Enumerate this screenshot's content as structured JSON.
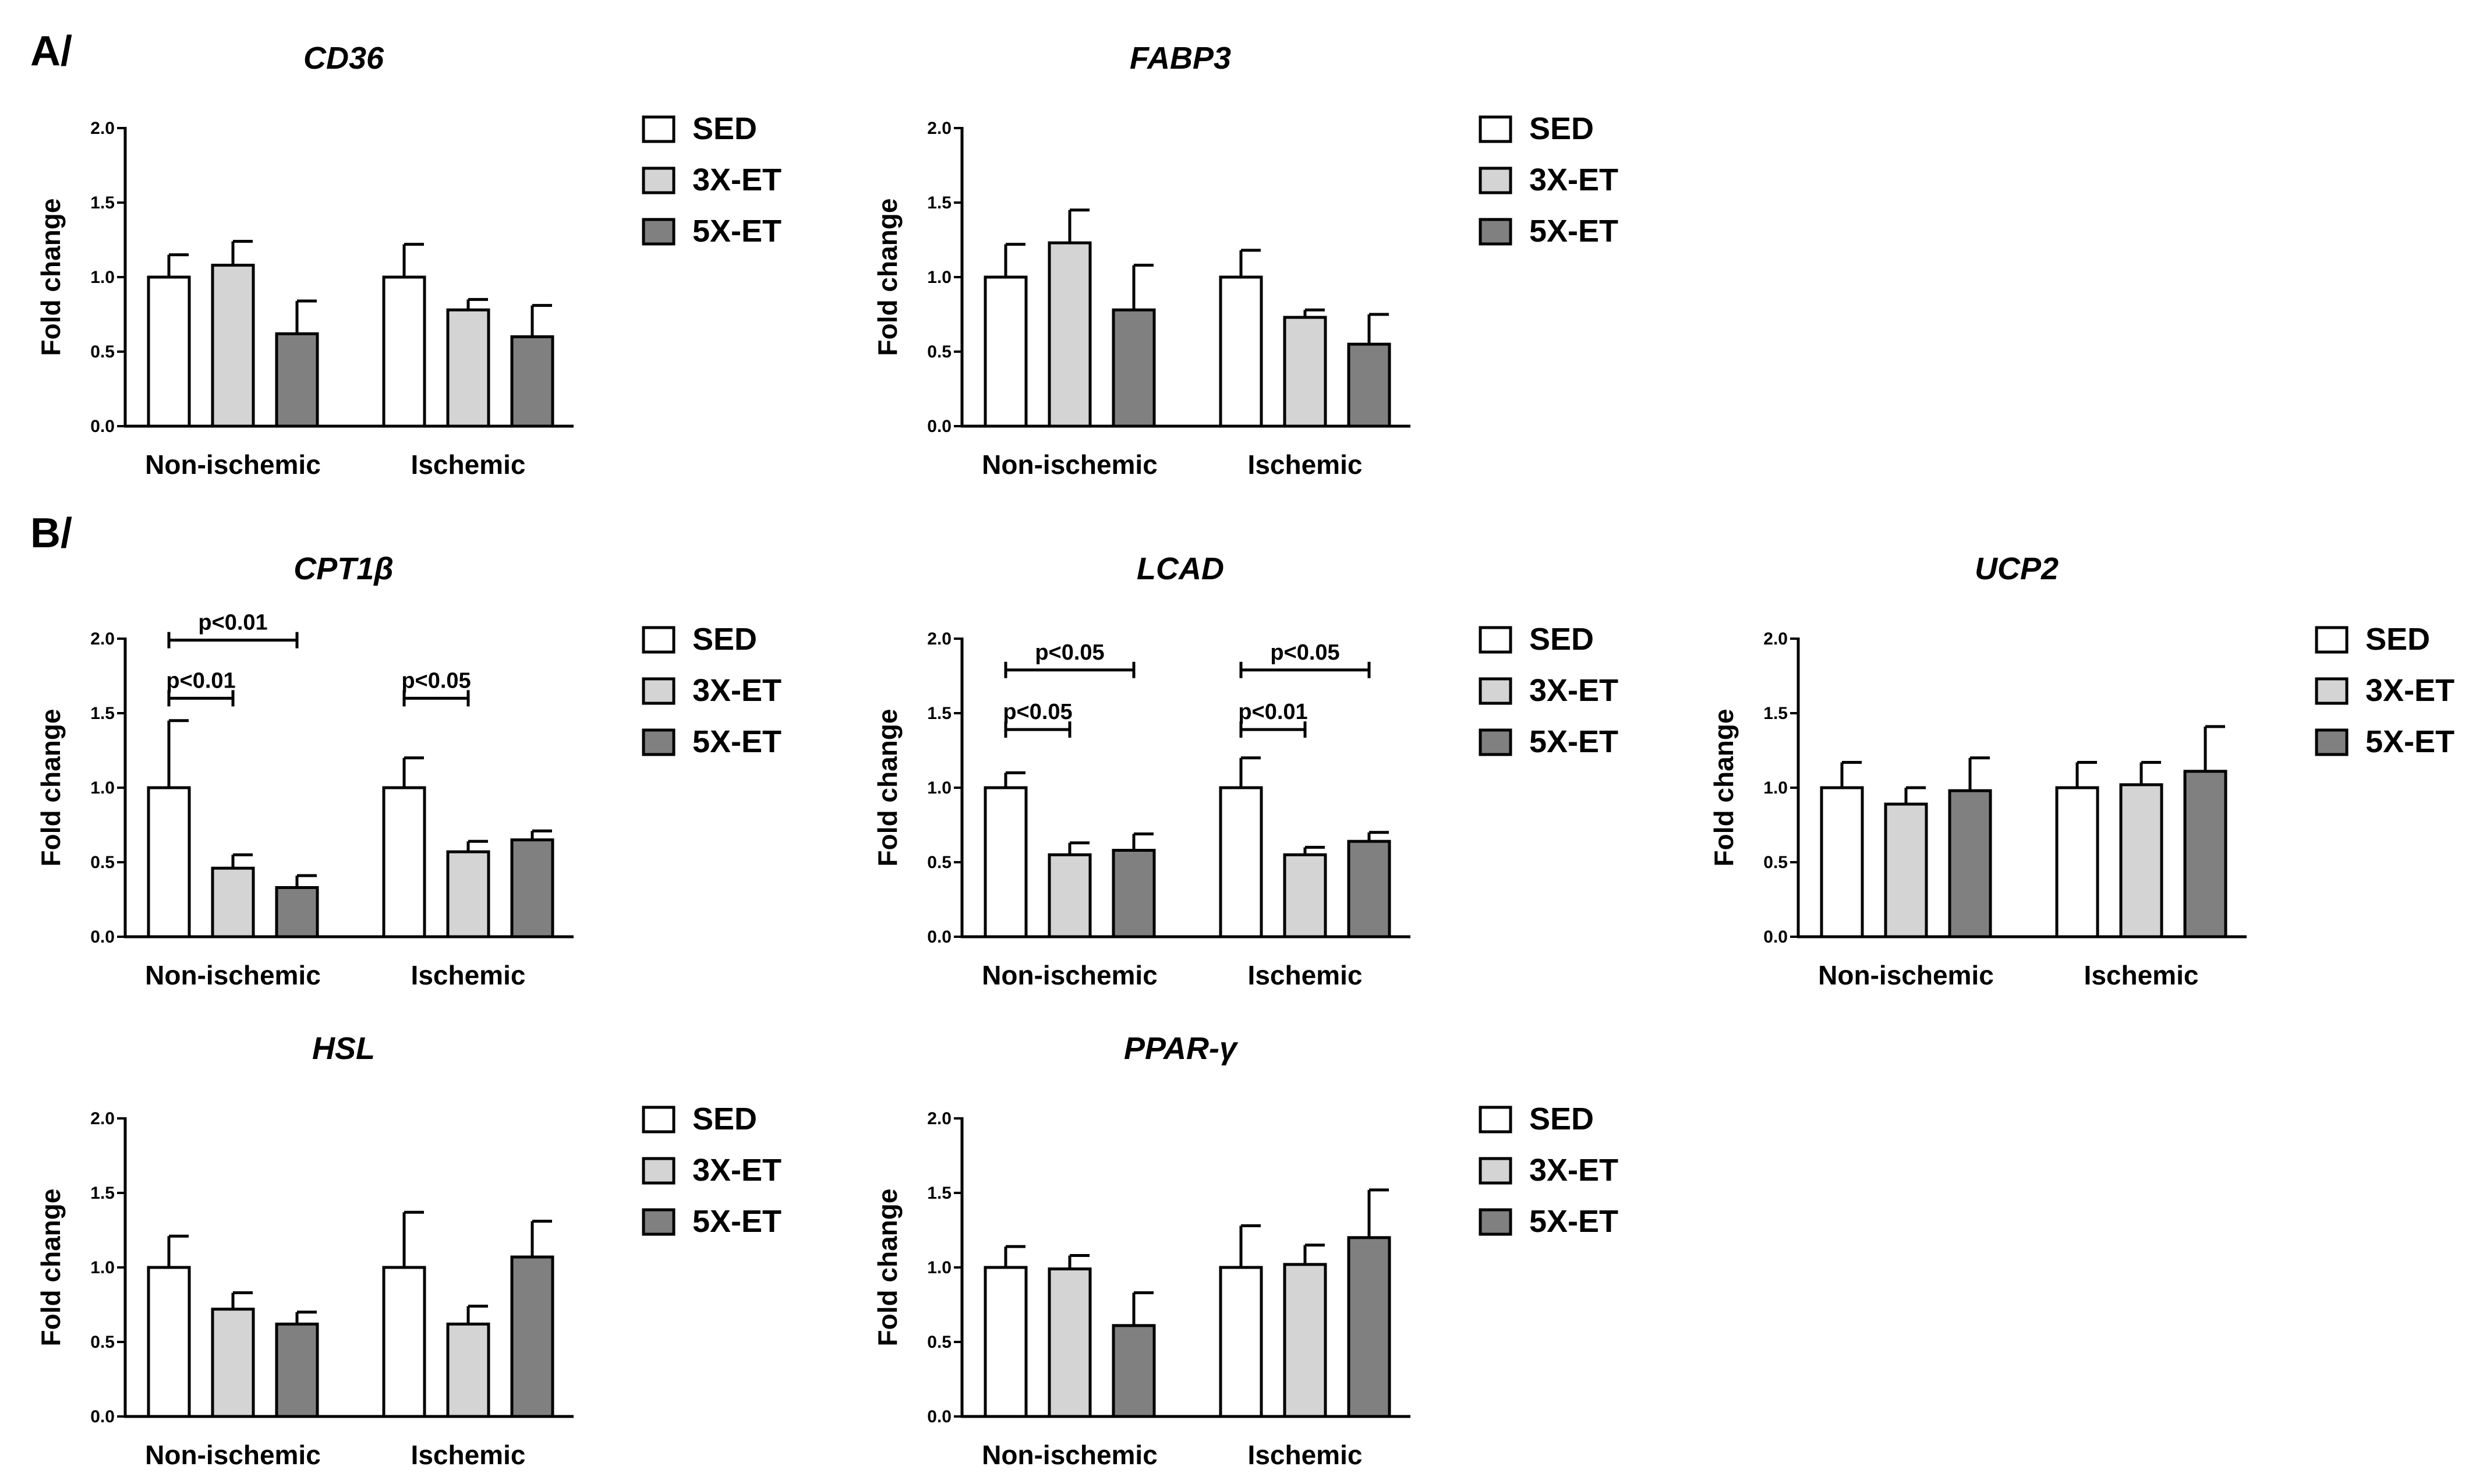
{
  "panel_labels": [
    "A/",
    "B/"
  ],
  "legend": [
    {
      "label": "SED",
      "color": "#ffffff"
    },
    {
      "label": "3X-ET",
      "color": "#d4d4d4"
    },
    {
      "label": "5X-ET",
      "color": "#808080"
    }
  ],
  "chart_data": [
    {
      "type": "bar",
      "title": "CD36",
      "ylabel": "Fold change",
      "ylim": [
        0,
        2.0
      ],
      "yticks": [
        "0.0",
        "0.5",
        "1.0",
        "1.5",
        "2.0"
      ],
      "categories": [
        "Non-ischemic",
        "Ischemic"
      ],
      "series": [
        {
          "name": "SED",
          "values": [
            1.0,
            1.0
          ],
          "errors": [
            0.15,
            0.22
          ]
        },
        {
          "name": "3X-ET",
          "values": [
            1.08,
            0.78
          ],
          "errors": [
            0.16,
            0.07
          ]
        },
        {
          "name": "5X-ET",
          "values": [
            0.62,
            0.6
          ],
          "errors": [
            0.22,
            0.21
          ]
        }
      ],
      "annotations": []
    },
    {
      "type": "bar",
      "title": "FABP3",
      "ylabel": "Fold change",
      "ylim": [
        0,
        2.0
      ],
      "yticks": [
        "0.0",
        "0.5",
        "1.0",
        "1.5",
        "2.0"
      ],
      "categories": [
        "Non-ischemic",
        "Ischemic"
      ],
      "series": [
        {
          "name": "SED",
          "values": [
            1.0,
            1.0
          ],
          "errors": [
            0.22,
            0.18
          ]
        },
        {
          "name": "3X-ET",
          "values": [
            1.23,
            0.73
          ],
          "errors": [
            0.22,
            0.05
          ]
        },
        {
          "name": "5X-ET",
          "values": [
            0.78,
            0.55
          ],
          "errors": [
            0.3,
            0.2
          ]
        }
      ],
      "annotations": []
    },
    {
      "type": "bar",
      "title": "CPT1β",
      "ylabel": "Fold change",
      "ylim": [
        0,
        2.0
      ],
      "yticks": [
        "0.0",
        "0.5",
        "1.0",
        "1.5",
        "2.0"
      ],
      "categories": [
        "Non-ischemic",
        "Ischemic"
      ],
      "series": [
        {
          "name": "SED",
          "values": [
            1.0,
            1.0
          ],
          "errors": [
            0.45,
            0.2
          ]
        },
        {
          "name": "3X-ET",
          "values": [
            0.46,
            0.57
          ],
          "errors": [
            0.09,
            0.07
          ]
        },
        {
          "name": "5X-ET",
          "values": [
            0.33,
            0.65
          ],
          "errors": [
            0.08,
            0.06
          ]
        }
      ],
      "annotations": [
        {
          "label": "p<0.01",
          "group": 0,
          "from": 0,
          "to": 2,
          "y": 1.99
        },
        {
          "label": "p<0.01",
          "group": 0,
          "from": 0,
          "to": 1,
          "y": 1.6
        },
        {
          "label": "p<0.05",
          "group": 1,
          "from": 0,
          "to": 1,
          "y": 1.6
        }
      ]
    },
    {
      "type": "bar",
      "title": "LCAD",
      "ylabel": "Fold change",
      "ylim": [
        0,
        2.0
      ],
      "yticks": [
        "0.0",
        "0.5",
        "1.0",
        "1.5",
        "2.0"
      ],
      "categories": [
        "Non-ischemic",
        "Ischemic"
      ],
      "series": [
        {
          "name": "SED",
          "values": [
            1.0,
            1.0
          ],
          "errors": [
            0.1,
            0.2
          ]
        },
        {
          "name": "3X-ET",
          "values": [
            0.55,
            0.55
          ],
          "errors": [
            0.08,
            0.05
          ]
        },
        {
          "name": "5X-ET",
          "values": [
            0.58,
            0.64
          ],
          "errors": [
            0.11,
            0.06
          ]
        }
      ],
      "annotations": [
        {
          "label": "p<0.05",
          "group": 0,
          "from": 0,
          "to": 2,
          "y": 1.79
        },
        {
          "label": "p<0.05",
          "group": 0,
          "from": 0,
          "to": 1,
          "y": 1.39
        },
        {
          "label": "p<0.05",
          "group": 1,
          "from": 0,
          "to": 2,
          "y": 1.79
        },
        {
          "label": "p<0.01",
          "group": 1,
          "from": 0,
          "to": 1,
          "y": 1.39
        }
      ]
    },
    {
      "type": "bar",
      "title": "UCP2",
      "ylabel": "Fold change",
      "ylim": [
        0,
        2.0
      ],
      "yticks": [
        "0.0",
        "0.5",
        "1.0",
        "1.5",
        "2.0"
      ],
      "categories": [
        "Non-ischemic",
        "Ischemic"
      ],
      "series": [
        {
          "name": "SED",
          "values": [
            1.0,
            1.0
          ],
          "errors": [
            0.17,
            0.17
          ]
        },
        {
          "name": "3X-ET",
          "values": [
            0.89,
            1.02
          ],
          "errors": [
            0.11,
            0.15
          ]
        },
        {
          "name": "5X-ET",
          "values": [
            0.98,
            1.11
          ],
          "errors": [
            0.22,
            0.3
          ]
        }
      ],
      "annotations": []
    },
    {
      "type": "bar",
      "title": "HSL",
      "ylabel": "Fold change",
      "ylim": [
        0,
        2.0
      ],
      "yticks": [
        "0.0",
        "0.5",
        "1.0",
        "1.5",
        "2.0"
      ],
      "categories": [
        "Non-ischemic",
        "Ischemic"
      ],
      "series": [
        {
          "name": "SED",
          "values": [
            1.0,
            1.0
          ],
          "errors": [
            0.21,
            0.37
          ]
        },
        {
          "name": "3X-ET",
          "values": [
            0.72,
            0.62
          ],
          "errors": [
            0.11,
            0.12
          ]
        },
        {
          "name": "5X-ET",
          "values": [
            0.62,
            1.07
          ],
          "errors": [
            0.08,
            0.24
          ]
        }
      ],
      "annotations": []
    },
    {
      "type": "bar",
      "title": "PPAR-γ",
      "ylabel": "Fold change",
      "ylim": [
        0,
        2.0
      ],
      "yticks": [
        "0.0",
        "0.5",
        "1.0",
        "1.5",
        "2.0"
      ],
      "categories": [
        "Non-ischemic",
        "Ischemic"
      ],
      "series": [
        {
          "name": "SED",
          "values": [
            1.0,
            1.0
          ],
          "errors": [
            0.14,
            0.28
          ]
        },
        {
          "name": "3X-ET",
          "values": [
            0.99,
            1.02
          ],
          "errors": [
            0.09,
            0.13
          ]
        },
        {
          "name": "5X-ET",
          "values": [
            0.61,
            1.2
          ],
          "errors": [
            0.22,
            0.32
          ]
        }
      ],
      "annotations": []
    }
  ]
}
